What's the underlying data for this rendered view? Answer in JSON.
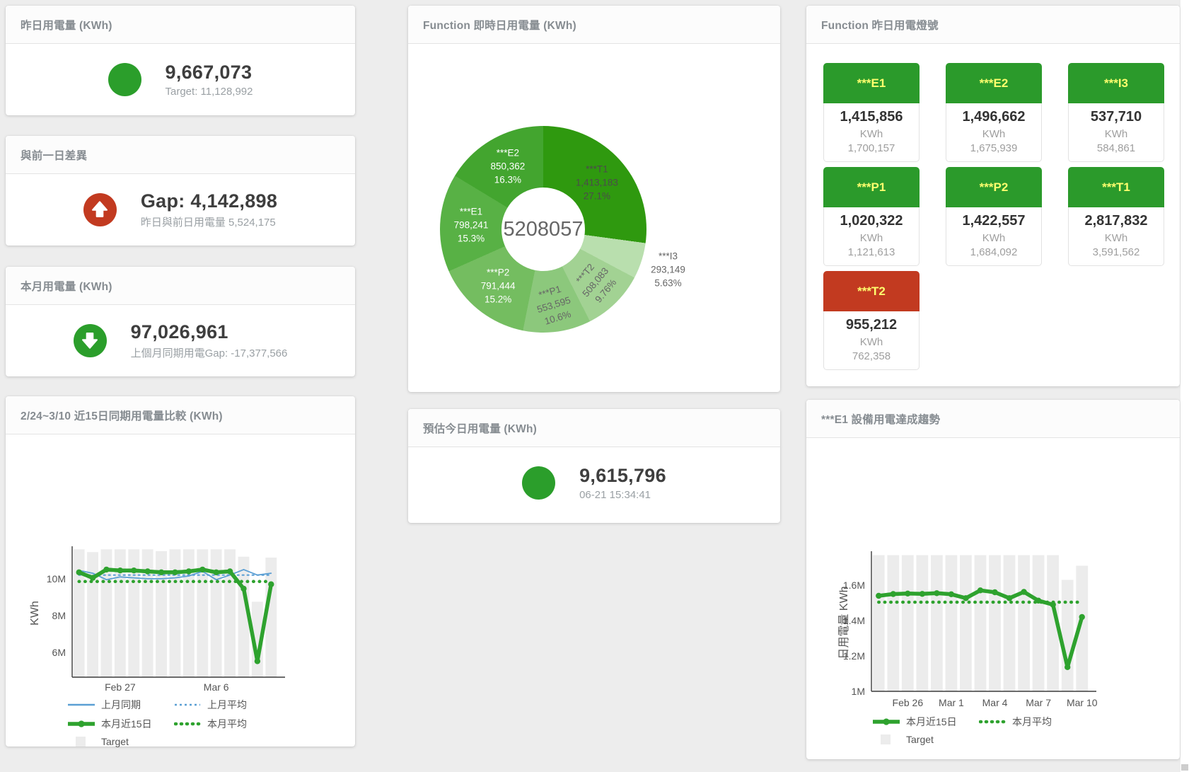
{
  "stat_cards": {
    "yesterday": {
      "title": "昨日用電量 (KWh)",
      "value": "9,667,073",
      "subtitle": "Target: 11,128,992",
      "icon": "circle",
      "color": "#2b9e2b"
    },
    "prev_day_gap": {
      "title": "與前一日差異",
      "value": "Gap: 4,142,898",
      "subtitle": "昨日與前日用電量 5,524,175",
      "icon": "arrow-up",
      "color": "#c23a20"
    },
    "month": {
      "title": "本月用電量 (KWh)",
      "value": "97,026,961",
      "subtitle": "上個月同期用電Gap: -17,377,566",
      "icon": "arrow-down",
      "color": "#2b9e2b"
    },
    "today_estimate": {
      "title": "預估今日用電量 (KWh)",
      "value": "9,615,796",
      "subtitle": "06-21 15:34:41",
      "icon": "circle",
      "color": "#2b9e2b"
    }
  },
  "lights": {
    "title": "Function 昨日用電燈號",
    "label_color": "#ffff6e",
    "tiles": [
      {
        "label": "***E1",
        "value": "1,415,856",
        "unit": "KWh",
        "target": "1,700,157",
        "color": "#2b9a2b"
      },
      {
        "label": "***E2",
        "value": "1,496,662",
        "unit": "KWh",
        "target": "1,675,939",
        "color": "#2b9a2b"
      },
      {
        "label": "***I3",
        "value": "537,710",
        "unit": "KWh",
        "target": "584,861",
        "color": "#2b9a2b"
      },
      {
        "label": "***P1",
        "value": "1,020,322",
        "unit": "KWh",
        "target": "1,121,613",
        "color": "#2b9a2b"
      },
      {
        "label": "***P2",
        "value": "1,422,557",
        "unit": "KWh",
        "target": "1,684,092",
        "color": "#2b9a2b"
      },
      {
        "label": "***T1",
        "value": "2,817,832",
        "unit": "KWh",
        "target": "3,591,562",
        "color": "#2b9a2b"
      },
      {
        "label": "***T2",
        "value": "955,212",
        "unit": "KWh",
        "target": "762,358",
        "color": "#c23a20"
      }
    ]
  },
  "chart_data": [
    {
      "id": "donut",
      "type": "pie",
      "title": "Function 即時日用電量 (KWh)",
      "center_total": "5208057",
      "slices": [
        {
          "name": "***T1",
          "value": 1413183,
          "pct": "27.1%",
          "color": "#2f990f",
          "label_color": "#4b4b4b",
          "label_r": 0.69,
          "rot": 0,
          "outside": false
        },
        {
          "name": "***I3",
          "value": 293149,
          "pct": "5.63%",
          "color": "#b9dfae",
          "label_color": "#666666",
          "label_r": 1.27,
          "rot": 0,
          "outside": true
        },
        {
          "name": "***T2",
          "value": 508083,
          "pct": "9.76%",
          "color": "#a2d293",
          "label_color": "#666666",
          "label_r": 0.72,
          "rot": -50,
          "outside": false
        },
        {
          "name": "***P1",
          "value": 553595,
          "pct": "10.6%",
          "color": "#8cc87c",
          "label_color": "#666666",
          "label_r": 0.74,
          "rot": -17,
          "outside": false
        },
        {
          "name": "***P2",
          "value": 791444,
          "pct": "15.2%",
          "color": "#74bd60",
          "label_color": "#ffffff",
          "label_r": 0.7,
          "rot": 0,
          "outside": false
        },
        {
          "name": "***E1",
          "value": 798241,
          "pct": "15.3%",
          "color": "#58b145",
          "label_color": "#ffffff",
          "label_r": 0.7,
          "rot": 0,
          "outside": false
        },
        {
          "name": "***E2",
          "value": 850362,
          "pct": "16.3%",
          "color": "#43a52f",
          "label_color": "#ffffff",
          "label_r": 0.7,
          "rot": 0,
          "outside": false
        }
      ]
    },
    {
      "id": "compare",
      "type": "line+bar",
      "title": "2/24~3/10 近15日同期用電量比較 (KWh)",
      "ylabel": "KWh",
      "categories": [
        "Feb 24",
        "Feb 25",
        "Feb 26",
        "Feb 27",
        "Feb 28",
        "Mar 1",
        "Mar 2",
        "Mar 3",
        "Mar 4",
        "Mar 5",
        "Mar 6",
        "Mar 7",
        "Mar 8",
        "Mar 9",
        "Mar 10"
      ],
      "xtick_idx": [
        3,
        10
      ],
      "ylim": [
        4650000,
        11610000
      ],
      "yticks": [
        {
          "v": 6000000,
          "label": "6M"
        },
        {
          "v": 8000000,
          "label": "8M"
        },
        {
          "v": 10000000,
          "label": "10M"
        }
      ],
      "grid": false,
      "legend_position": "bottom-left",
      "series": [
        {
          "name": "Target",
          "style": "bar",
          "color": "#ececec",
          "values": [
            11600000,
            11450000,
            11600000,
            11600000,
            11600000,
            11600000,
            11500000,
            11600000,
            11600000,
            11600000,
            11600000,
            11600000,
            11200000,
            8750000,
            11150000
          ]
        },
        {
          "name": "上月同期",
          "style": "line",
          "color": "#5b9fd4",
          "values": [
            10450000,
            10300000,
            9950000,
            10100000,
            10050000,
            10000000,
            10000000,
            10050000,
            10150000,
            10400000,
            9950000,
            10200000,
            10500000,
            10200000,
            10300000
          ]
        },
        {
          "name": "上月平均",
          "style": "dotted",
          "color": "#5b9fd4",
          "values": 10200000
        },
        {
          "name": "本月近15日",
          "style": "thick",
          "color": "#2ea22e",
          "values": [
            10350000,
            10050000,
            10500000,
            10450000,
            10450000,
            10400000,
            10350000,
            10350000,
            10400000,
            10500000,
            10350000,
            10400000,
            9460000,
            5520000,
            9700000
          ]
        },
        {
          "name": "本月平均",
          "style": "dotted-thick",
          "color": "#2ea22e",
          "values": 9850000
        }
      ],
      "legend": [
        "上月同期",
        "上月平均",
        "本月近15日",
        "本月平均",
        "Target"
      ]
    },
    {
      "id": "e1trend",
      "type": "line+bar",
      "title": "***E1 設備用電達成趨勢",
      "ylabel": "日用電量 KWh",
      "categories": [
        "Feb 24",
        "Feb 25",
        "Feb 26",
        "Feb 27",
        "Feb 28",
        "Mar 1",
        "Mar 2",
        "Mar 3",
        "Mar 4",
        "Mar 5",
        "Mar 6",
        "Mar 7",
        "Mar 8",
        "Mar 9",
        "Mar 10"
      ],
      "xtick_idx": [
        2,
        5,
        8,
        11,
        14
      ],
      "ylim": [
        1000000,
        1776000
      ],
      "yticks": [
        {
          "v": 1000000,
          "label": "1M"
        },
        {
          "v": 1200000,
          "label": "1.2M"
        },
        {
          "v": 1400000,
          "label": "1.4M"
        },
        {
          "v": 1600000,
          "label": "1.6M"
        }
      ],
      "grid": false,
      "legend_position": "bottom-left",
      "series": [
        {
          "name": "Target",
          "style": "bar",
          "color": "#ececec",
          "values": [
            1770000,
            1770000,
            1770000,
            1770000,
            1770000,
            1770000,
            1770000,
            1770000,
            1770000,
            1770000,
            1770000,
            1770000,
            1770000,
            1630000,
            1710000
          ]
        },
        {
          "name": "本月近15日",
          "style": "thick",
          "color": "#2ea22e",
          "values": [
            1540000,
            1550000,
            1553000,
            1551000,
            1555000,
            1549000,
            1527000,
            1571000,
            1560000,
            1527000,
            1562000,
            1513000,
            1490000,
            1137000,
            1420000
          ]
        },
        {
          "name": "本月平均",
          "style": "dotted-thick",
          "color": "#2ea22e",
          "values": 1504000
        }
      ],
      "legend": [
        "本月近15日",
        "本月平均",
        "Target"
      ]
    }
  ]
}
